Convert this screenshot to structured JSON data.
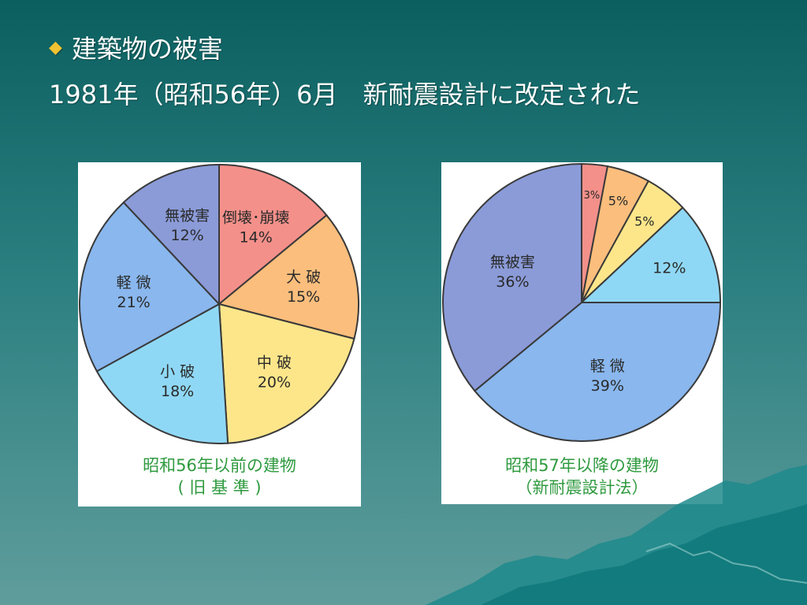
{
  "slide": {
    "bullet_glyph": "◆",
    "title": "建築物の被害",
    "subtitle": "1981年（昭和56年）6月　新耐震設計に改定された",
    "bullet_color": "#f1c232"
  },
  "chart_data": [
    {
      "type": "pie",
      "caption": [
        "昭和56年以前の建物",
        "( 旧 基 準 )"
      ],
      "slices": [
        {
          "label": "倒壊･崩壊",
          "value": 14,
          "value_text": "14%",
          "color": "#f4908a"
        },
        {
          "label": "大 破",
          "value": 15,
          "value_text": "15%",
          "color": "#fbbe7c"
        },
        {
          "label": "中 破",
          "value": 20,
          "value_text": "20%",
          "color": "#fde68a"
        },
        {
          "label": "小 破",
          "value": 18,
          "value_text": "18%",
          "color": "#8fd8f5"
        },
        {
          "label": "軽 微",
          "value": 21,
          "value_text": "21%",
          "color": "#89b7ee"
        },
        {
          "label": "無被害",
          "value": 12,
          "value_text": "12%",
          "color": "#8b9bd8"
        }
      ]
    },
    {
      "type": "pie",
      "caption": [
        "昭和57年以降の建物",
        "（新耐震設計法）"
      ],
      "slices": [
        {
          "label": "",
          "value": 3,
          "value_text": "3%",
          "color": "#f4908a"
        },
        {
          "label": "",
          "value": 5,
          "value_text": "5%",
          "color": "#fbbe7c"
        },
        {
          "label": "",
          "value": 5,
          "value_text": "5%",
          "color": "#fde68a"
        },
        {
          "label": "",
          "value": 12,
          "value_text": "12%",
          "color": "#8fd8f5"
        },
        {
          "label": "軽 微",
          "value": 39,
          "value_text": "39%",
          "color": "#89b7ee"
        },
        {
          "label": "無被害",
          "value": 36,
          "value_text": "36%",
          "color": "#8b9bd8"
        }
      ]
    }
  ]
}
